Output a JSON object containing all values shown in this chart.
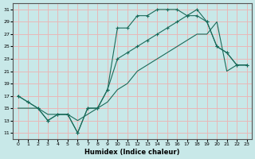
{
  "xlabel": "Humidex (Indice chaleur)",
  "background_color": "#c8e8e8",
  "grid_color": "#e8b8b8",
  "line_color": "#1a6b5a",
  "xlim": [
    -0.5,
    23.5
  ],
  "ylim": [
    10,
    32
  ],
  "yticks": [
    11,
    13,
    15,
    17,
    19,
    21,
    23,
    25,
    27,
    29,
    31
  ],
  "xticks": [
    0,
    1,
    2,
    3,
    4,
    5,
    6,
    7,
    8,
    9,
    10,
    11,
    12,
    13,
    14,
    15,
    16,
    17,
    18,
    19,
    20,
    21,
    22,
    23
  ],
  "curve1_x": [
    0,
    1,
    2,
    3,
    4,
    5,
    6,
    7,
    8,
    9,
    10,
    11,
    12,
    13,
    14,
    15,
    16,
    17,
    18,
    19,
    20,
    21,
    22,
    23
  ],
  "curve1_y": [
    17,
    16,
    15,
    13,
    14,
    14,
    11,
    15,
    15,
    18,
    28,
    28,
    30,
    30,
    31,
    31,
    31,
    30,
    30,
    29,
    25,
    24,
    22,
    22
  ],
  "curve2_x": [
    0,
    1,
    2,
    3,
    4,
    5,
    6,
    7,
    8,
    9,
    10,
    11,
    12,
    13,
    14,
    15,
    16,
    17,
    18,
    19,
    20,
    21,
    22,
    23
  ],
  "curve2_y": [
    15,
    15,
    15,
    14,
    14,
    14,
    13,
    14,
    15,
    16,
    18,
    19,
    21,
    22,
    23,
    24,
    25,
    26,
    27,
    27,
    29,
    21,
    22,
    22
  ],
  "curve3_x": [
    0,
    1,
    2,
    3,
    4,
    5,
    6,
    7,
    8,
    9,
    10,
    11,
    12,
    13,
    14,
    15,
    16,
    17,
    18,
    19,
    20,
    21,
    22,
    23
  ],
  "curve3_y": [
    17,
    16,
    15,
    13,
    14,
    14,
    11,
    15,
    15,
    18,
    23,
    24,
    25,
    26,
    27,
    28,
    29,
    30,
    31,
    29,
    25,
    24,
    22,
    22
  ]
}
